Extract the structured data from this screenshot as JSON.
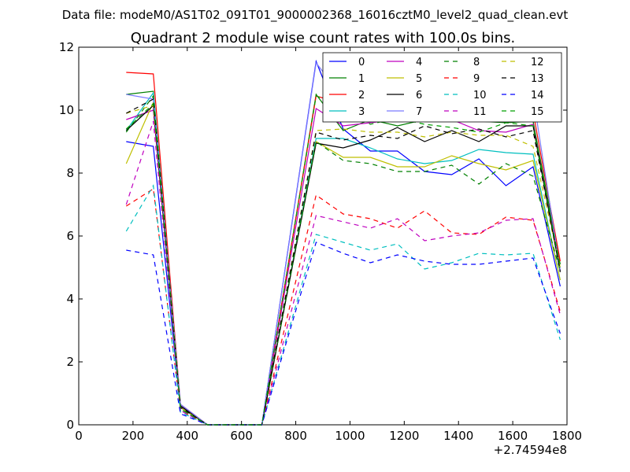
{
  "suptitle": "Data file: modeM0/AS1T02_091T01_9000002368_16016cztM0_level2_quad_clean.evt",
  "chart_data": {
    "type": "line",
    "title": "Quadrant 2 module wise count rates with 100.0s bins.",
    "xlabel": "",
    "ylabel": "",
    "x_offset_label": "+2.74594e8",
    "xlim": [
      0,
      1800
    ],
    "ylim": [
      0,
      12
    ],
    "xticks": [
      0,
      200,
      400,
      600,
      800,
      1000,
      1200,
      1400,
      1600,
      1800
    ],
    "yticks": [
      0,
      2,
      4,
      6,
      8,
      10,
      12
    ],
    "grid": false,
    "legend_location": "top-right",
    "legend_columns": 4,
    "x": [
      175,
      275,
      375,
      475,
      575,
      675,
      875,
      975,
      1075,
      1175,
      1275,
      1375,
      1475,
      1575,
      1675,
      1775
    ],
    "series": [
      {
        "name": "0",
        "color": "#0000ff",
        "dash": "solid",
        "values": [
          9.0,
          8.85,
          0.55,
          0,
          0,
          0,
          11.55,
          9.4,
          8.7,
          8.7,
          8.05,
          7.95,
          8.45,
          7.6,
          8.2,
          4.4
        ]
      },
      {
        "name": "1",
        "color": "#008000",
        "dash": "solid",
        "values": [
          10.5,
          10.6,
          0.6,
          0,
          0,
          0,
          10.5,
          9.35,
          9.7,
          9.5,
          9.7,
          9.7,
          9.65,
          9.6,
          9.65,
          5.1
        ]
      },
      {
        "name": "2",
        "color": "#ff0000",
        "dash": "solid",
        "values": [
          11.2,
          11.15,
          0.65,
          0,
          0,
          0,
          10.45,
          10.2,
          9.95,
          9.95,
          10.0,
          10.2,
          9.9,
          10.05,
          9.95,
          5.2
        ]
      },
      {
        "name": "3",
        "color": "#00bfbf",
        "dash": "solid",
        "values": [
          9.35,
          10.55,
          0.6,
          0,
          0,
          0,
          9.1,
          9.1,
          8.8,
          8.45,
          8.3,
          8.4,
          8.75,
          8.65,
          8.6,
          4.6
        ]
      },
      {
        "name": "4",
        "color": "#bf00bf",
        "dash": "solid",
        "values": [
          9.7,
          10.0,
          0.6,
          0,
          0,
          0,
          10.05,
          9.5,
          9.6,
          9.7,
          9.65,
          9.7,
          9.35,
          9.3,
          9.55,
          4.9
        ]
      },
      {
        "name": "5",
        "color": "#bfbf00",
        "dash": "solid",
        "values": [
          8.3,
          10.25,
          0.55,
          0,
          0,
          0,
          9.0,
          8.5,
          8.5,
          8.2,
          8.2,
          8.55,
          8.3,
          8.1,
          8.4,
          4.6
        ]
      },
      {
        "name": "6",
        "color": "#000000",
        "dash": "solid",
        "values": [
          9.35,
          10.15,
          0.6,
          0,
          0,
          0,
          8.95,
          8.8,
          9.05,
          9.45,
          9.0,
          9.35,
          9.0,
          9.5,
          9.5,
          4.85
        ]
      },
      {
        "name": "7",
        "color": "#7b7bff",
        "dash": "solid",
        "values": [
          10.5,
          10.35,
          0.65,
          0,
          0,
          0,
          11.5,
          10.4,
          10.35,
          10.2,
          9.65,
          10.3,
          10.15,
          10.5,
          10.45,
          4.9
        ]
      },
      {
        "name": "8",
        "color": "#008000",
        "dash": "dashed",
        "values": [
          9.3,
          10.45,
          0.5,
          0,
          0,
          0,
          9.0,
          8.4,
          8.3,
          8.05,
          8.05,
          8.25,
          7.65,
          8.3,
          7.9,
          4.9
        ]
      },
      {
        "name": "9",
        "color": "#ff0000",
        "dash": "dashed",
        "values": [
          6.95,
          7.5,
          0.45,
          0,
          0,
          0,
          7.3,
          6.7,
          6.55,
          6.25,
          6.8,
          6.1,
          6.05,
          6.6,
          6.5,
          3.6
        ]
      },
      {
        "name": "10",
        "color": "#00bfbf",
        "dash": "dashed",
        "values": [
          6.15,
          7.6,
          0.4,
          0,
          0,
          0,
          6.05,
          5.8,
          5.55,
          5.75,
          4.95,
          5.15,
          5.45,
          5.4,
          5.45,
          2.7
        ]
      },
      {
        "name": "11",
        "color": "#bf00bf",
        "dash": "dashed",
        "values": [
          7.0,
          9.65,
          0.45,
          0,
          0,
          0,
          6.65,
          6.45,
          6.25,
          6.55,
          5.85,
          6.0,
          6.1,
          6.5,
          6.55,
          3.5
        ]
      },
      {
        "name": "12",
        "color": "#bfbf00",
        "dash": "dashed",
        "values": [
          9.9,
          10.15,
          0.55,
          0,
          0,
          0,
          9.35,
          9.4,
          9.3,
          9.3,
          9.15,
          9.3,
          9.2,
          9.2,
          8.85,
          5.0
        ]
      },
      {
        "name": "13",
        "color": "#000000",
        "dash": "dashed",
        "values": [
          9.9,
          10.35,
          0.55,
          0,
          0,
          0,
          9.3,
          9.05,
          9.2,
          9.1,
          9.5,
          9.25,
          9.4,
          9.15,
          9.35,
          4.9
        ]
      },
      {
        "name": "14",
        "color": "#0000ff",
        "dash": "dashed",
        "values": [
          5.55,
          5.4,
          0.35,
          0,
          0,
          0,
          5.8,
          5.45,
          5.15,
          5.4,
          5.2,
          5.1,
          5.1,
          5.2,
          5.3,
          2.9
        ]
      },
      {
        "name": "15",
        "color": "#00a000",
        "dash": "dashed",
        "values": [
          9.4,
          10.2,
          0.5,
          0,
          0,
          0,
          10.45,
          10.1,
          9.55,
          9.75,
          9.55,
          9.45,
          9.3,
          9.6,
          9.5,
          5.0
        ]
      }
    ]
  }
}
